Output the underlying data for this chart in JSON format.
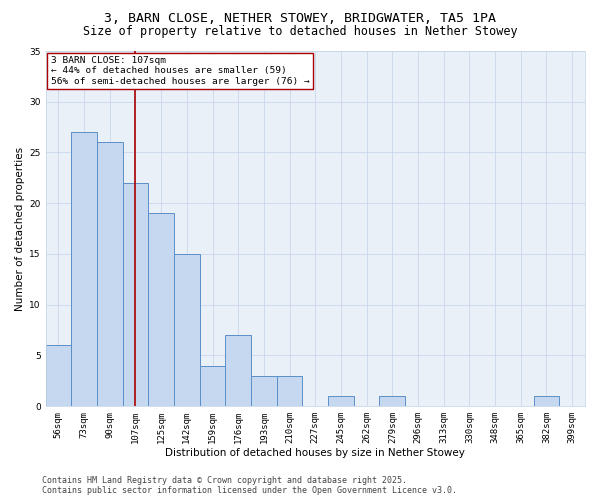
{
  "title_line1": "3, BARN CLOSE, NETHER STOWEY, BRIDGWATER, TA5 1PA",
  "title_line2": "Size of property relative to detached houses in Nether Stowey",
  "xlabel": "Distribution of detached houses by size in Nether Stowey",
  "ylabel": "Number of detached properties",
  "categories": [
    "56sqm",
    "73sqm",
    "90sqm",
    "107sqm",
    "125sqm",
    "142sqm",
    "159sqm",
    "176sqm",
    "193sqm",
    "210sqm",
    "227sqm",
    "245sqm",
    "262sqm",
    "279sqm",
    "296sqm",
    "313sqm",
    "330sqm",
    "348sqm",
    "365sqm",
    "382sqm",
    "399sqm"
  ],
  "values": [
    6,
    27,
    26,
    22,
    19,
    15,
    4,
    7,
    3,
    3,
    0,
    1,
    0,
    1,
    0,
    0,
    0,
    0,
    0,
    1,
    0
  ],
  "bar_color": "#c5d8f0",
  "bar_edge_color": "#5b8fc9",
  "vline_x_index": 3,
  "vline_color": "#aa0000",
  "annotation_text": "3 BARN CLOSE: 107sqm\n← 44% of detached houses are smaller (59)\n56% of semi-detached houses are larger (76) →",
  "annotation_box_color": "white",
  "annotation_box_edge_color": "#aa0000",
  "ylim": [
    0,
    35
  ],
  "yticks": [
    0,
    5,
    10,
    15,
    20,
    25,
    30,
    35
  ],
  "grid_color": "#c8d8ea",
  "background_color": "#eaf0f8",
  "footer_line1": "Contains HM Land Registry data © Crown copyright and database right 2025.",
  "footer_line2": "Contains public sector information licensed under the Open Government Licence v3.0.",
  "title_fontsize": 9.5,
  "subtitle_fontsize": 8.5,
  "axis_label_fontsize": 7.5,
  "tick_fontsize": 6.5,
  "annotation_fontsize": 6.8,
  "footer_fontsize": 6.0
}
